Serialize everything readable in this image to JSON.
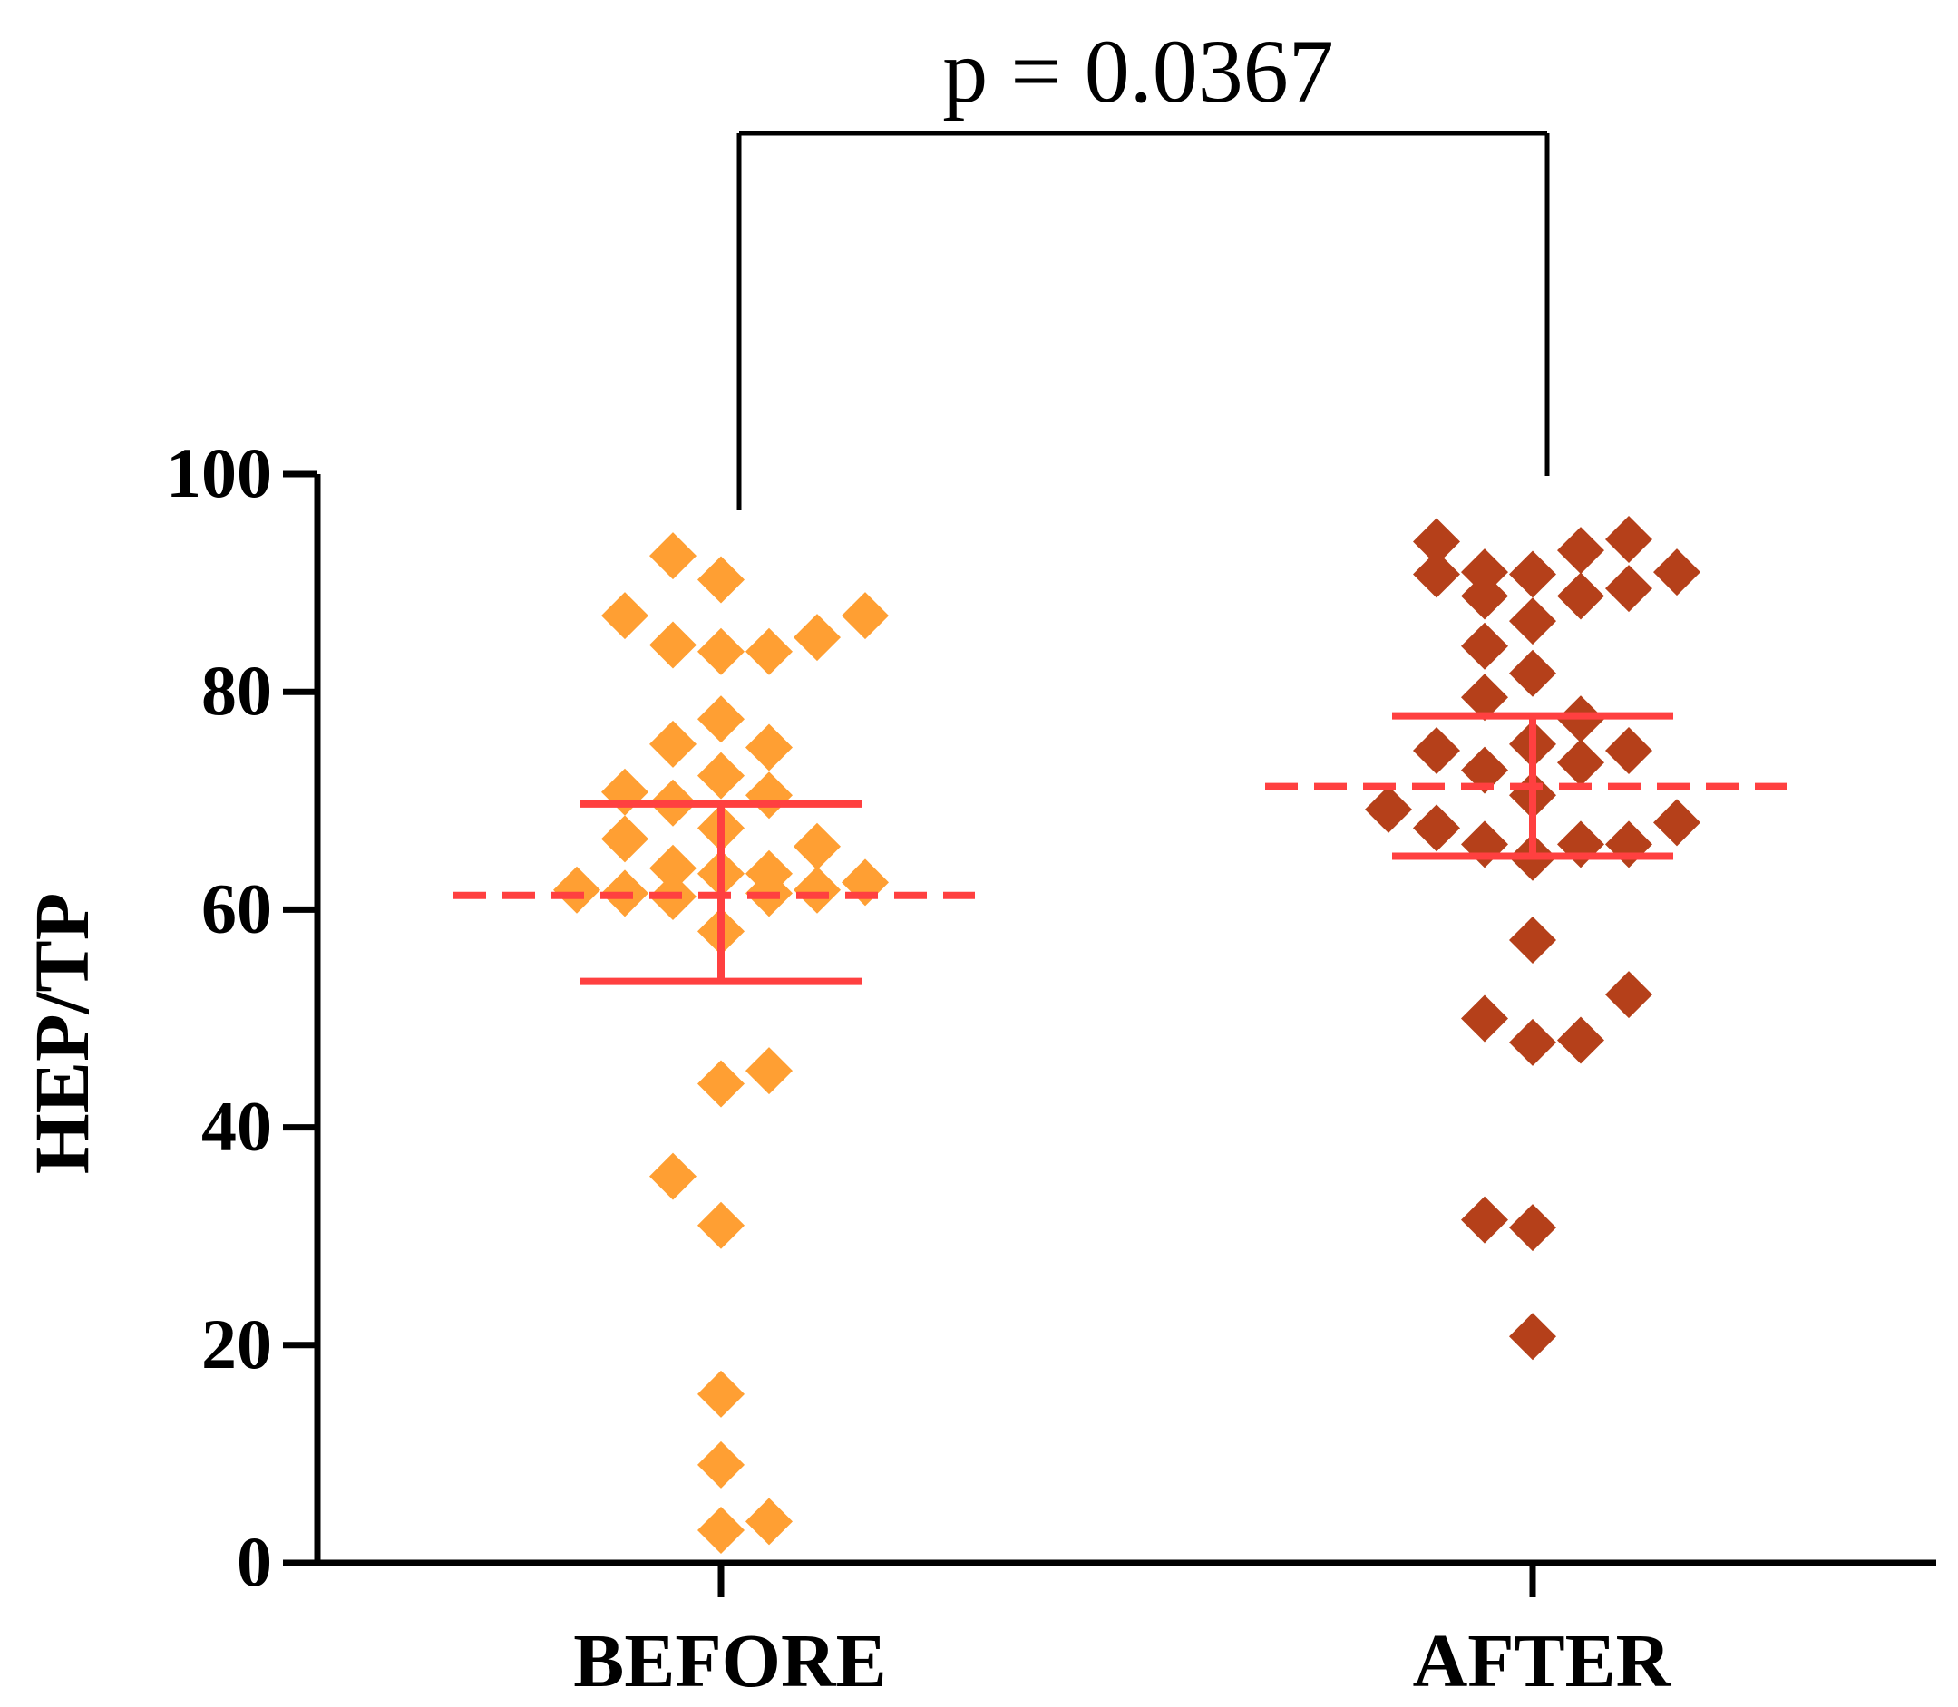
{
  "chart_data": {
    "type": "scatter",
    "subtype": "dot-plot",
    "title": "",
    "xlabel": "",
    "ylabel": "HEP/TP",
    "ylim": [
      0,
      100
    ],
    "yticks": [
      0,
      20,
      40,
      60,
      80,
      100
    ],
    "ytick_labels": [
      "0",
      "20",
      "40",
      "60",
      "80",
      "100"
    ],
    "categories": [
      "BEFORE",
      "AFTER"
    ],
    "grid": false,
    "legend": "none",
    "annotation": {
      "text": "p = 0.0367",
      "spans": [
        "BEFORE",
        "AFTER"
      ]
    },
    "colors": {
      "before": "#FF9F33",
      "after": "#B5401A",
      "summary": "#FF4040",
      "axis": "#000000"
    },
    "series": [
      {
        "name": "BEFORE",
        "color": "#FF9F33",
        "mean": 61.3,
        "error_low": 53.4,
        "error_high": 69.7,
        "points": [
          {
            "offset": -1,
            "y": 92.5
          },
          {
            "offset": 0,
            "y": 90.3
          },
          {
            "offset": -2,
            "y": 87.0
          },
          {
            "offset": 3,
            "y": 87.0
          },
          {
            "offset": -1,
            "y": 84.3
          },
          {
            "offset": 0,
            "y": 83.7
          },
          {
            "offset": 1,
            "y": 83.7
          },
          {
            "offset": 2,
            "y": 85.0
          },
          {
            "offset": 0,
            "y": 77.5
          },
          {
            "offset": -1,
            "y": 75.2
          },
          {
            "offset": 1,
            "y": 74.9
          },
          {
            "offset": 0,
            "y": 72.3
          },
          {
            "offset": -2,
            "y": 70.8
          },
          {
            "offset": -1,
            "y": 69.8
          },
          {
            "offset": 1,
            "y": 70.5
          },
          {
            "offset": 0,
            "y": 67.5
          },
          {
            "offset": -2,
            "y": 66.5
          },
          {
            "offset": 2,
            "y": 65.8
          },
          {
            "offset": -1,
            "y": 63.8
          },
          {
            "offset": 0,
            "y": 63.3
          },
          {
            "offset": 1,
            "y": 63.3
          },
          {
            "offset": 3,
            "y": 62.5
          },
          {
            "offset": -3,
            "y": 61.8
          },
          {
            "offset": -2,
            "y": 61.5
          },
          {
            "offset": -1,
            "y": 61.2
          },
          {
            "offset": 1,
            "y": 61.5
          },
          {
            "offset": 2,
            "y": 61.8
          },
          {
            "offset": 0,
            "y": 58.0
          },
          {
            "offset": 0,
            "y": 44.0
          },
          {
            "offset": 1,
            "y": 45.2
          },
          {
            "offset": -1,
            "y": 35.5
          },
          {
            "offset": 0,
            "y": 31.0
          },
          {
            "offset": 0,
            "y": 15.5
          },
          {
            "offset": 0,
            "y": 9.0
          },
          {
            "offset": 0,
            "y": 3.0
          },
          {
            "offset": 1,
            "y": 3.8
          }
        ]
      },
      {
        "name": "AFTER",
        "color": "#B5401A",
        "mean": 71.3,
        "error_low": 64.9,
        "error_high": 77.8,
        "points": [
          {
            "offset": -2,
            "y": 93.8
          },
          {
            "offset": 1,
            "y": 93.0
          },
          {
            "offset": 2,
            "y": 94.0
          },
          {
            "offset": -2,
            "y": 90.8
          },
          {
            "offset": -1,
            "y": 91.0
          },
          {
            "offset": 0,
            "y": 90.8
          },
          {
            "offset": 3,
            "y": 91.0
          },
          {
            "offset": -1,
            "y": 88.8
          },
          {
            "offset": 1,
            "y": 88.8
          },
          {
            "offset": 2,
            "y": 89.5
          },
          {
            "offset": 0,
            "y": 86.5
          },
          {
            "offset": -1,
            "y": 84.2
          },
          {
            "offset": 0,
            "y": 81.7
          },
          {
            "offset": -1,
            "y": 79.5
          },
          {
            "offset": 1,
            "y": 77.5
          },
          {
            "offset": 0,
            "y": 75.2
          },
          {
            "offset": -2,
            "y": 74.6
          },
          {
            "offset": 2,
            "y": 74.6
          },
          {
            "offset": 1,
            "y": 73.5
          },
          {
            "offset": -1,
            "y": 72.8
          },
          {
            "offset": 0,
            "y": 70.5
          },
          {
            "offset": -3,
            "y": 69.2
          },
          {
            "offset": -2,
            "y": 67.5
          },
          {
            "offset": 3,
            "y": 68.0
          },
          {
            "offset": -1,
            "y": 66.0
          },
          {
            "offset": 1,
            "y": 66.0
          },
          {
            "offset": 2,
            "y": 66.0
          },
          {
            "offset": 0,
            "y": 64.8
          },
          {
            "offset": 0,
            "y": 57.2
          },
          {
            "offset": 2,
            "y": 52.2
          },
          {
            "offset": -1,
            "y": 50.0
          },
          {
            "offset": 0,
            "y": 47.8
          },
          {
            "offset": 1,
            "y": 48.0
          },
          {
            "offset": -1,
            "y": 31.5
          },
          {
            "offset": 0,
            "y": 30.8
          },
          {
            "offset": 0,
            "y": 20.8
          }
        ]
      }
    ]
  }
}
